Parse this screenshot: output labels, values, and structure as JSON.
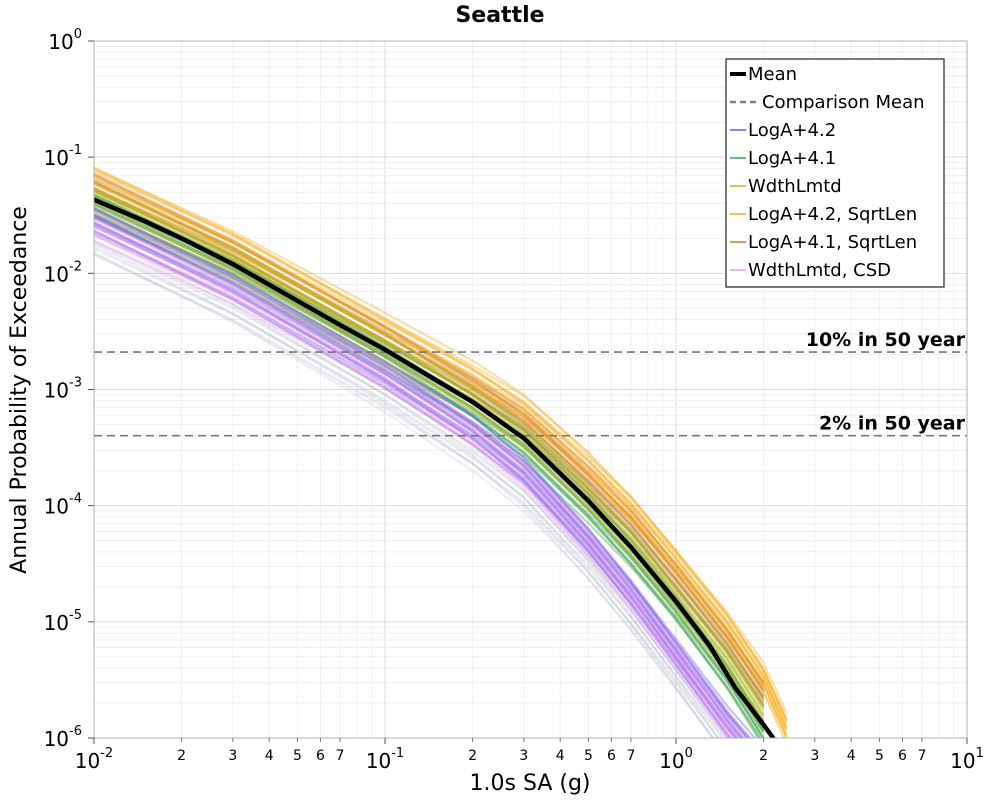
{
  "chart_data": {
    "type": "line",
    "title": "Seattle",
    "xlabel": "1.0s SA (g)",
    "ylabel": "Annual Probability of Exceedance",
    "x_scale": "log",
    "y_scale": "log",
    "xlim": [
      0.01,
      10
    ],
    "ylim": [
      1e-06,
      1
    ],
    "grid": true,
    "legend_placement": "top-right",
    "x_major_ticks": [
      {
        "base": "10",
        "exp": "-2",
        "value": 0.01
      },
      {
        "base": "10",
        "exp": "-1",
        "value": 0.1
      },
      {
        "base": "10",
        "exp": "0",
        "value": 1
      },
      {
        "base": "10",
        "exp": "1",
        "value": 10
      }
    ],
    "x_minor_labels": [
      "2",
      "3",
      "4",
      "5",
      "6",
      "7"
    ],
    "y_major_ticks": [
      {
        "base": "10",
        "exp": "0",
        "value": 1
      },
      {
        "base": "10",
        "exp": "-1",
        "value": 0.1
      },
      {
        "base": "10",
        "exp": "-2",
        "value": 0.01
      },
      {
        "base": "10",
        "exp": "-3",
        "value": 0.001
      },
      {
        "base": "10",
        "exp": "-4",
        "value": 0.0001
      },
      {
        "base": "10",
        "exp": "-5",
        "value": 1e-05
      },
      {
        "base": "10",
        "exp": "-6",
        "value": 1e-06
      }
    ],
    "series": [
      {
        "name": "Mean",
        "color": "#000000",
        "style": "solid-thick",
        "x": [
          0.01,
          0.015,
          0.02,
          0.03,
          0.05,
          0.07,
          0.1,
          0.15,
          0.2,
          0.3,
          0.5,
          0.7,
          1.0,
          1.3,
          1.6,
          2.0,
          2.3
        ],
        "y": [
          0.043,
          0.028,
          0.02,
          0.012,
          0.0058,
          0.0036,
          0.0022,
          0.0012,
          0.00078,
          0.00038,
          0.00011,
          4.4e-05,
          1.5e-05,
          6.3e-06,
          2.7e-06,
          1.3e-06,
          8e-07
        ]
      },
      {
        "name": "Comparison Mean",
        "color": "#808080",
        "style": "dashed",
        "x": [],
        "y": []
      },
      {
        "name": "LogA+4.2",
        "color": "#3a5ee8",
        "style": "band",
        "x": [
          0.01,
          0.03,
          0.1,
          0.2,
          0.3,
          0.5,
          0.7,
          1.0,
          1.5,
          2.0
        ],
        "y": [
          0.03,
          0.008,
          0.0014,
          0.00045,
          0.0002,
          5e-05,
          1.8e-05,
          5.5e-06,
          1.4e-06,
          6e-07
        ]
      },
      {
        "name": "LogA+4.1",
        "color": "#2e9a3c",
        "style": "band",
        "x": [
          0.01,
          0.03,
          0.1,
          0.2,
          0.3,
          0.5,
          0.7,
          1.0,
          1.5,
          2.0
        ],
        "y": [
          0.038,
          0.0105,
          0.0019,
          0.00068,
          0.00033,
          9.5e-05,
          3.8e-05,
          1.3e-05,
          3.4e-06,
          1.1e-06
        ]
      },
      {
        "name": "WdthLmtd",
        "color": "#a8b820",
        "style": "band",
        "x": [
          0.01,
          0.03,
          0.1,
          0.2,
          0.3,
          0.5,
          0.7,
          1.0,
          1.5,
          2.0
        ],
        "y": [
          0.045,
          0.0125,
          0.0023,
          0.00082,
          0.0004,
          0.00012,
          5e-05,
          1.7e-05,
          4.8e-06,
          1.6e-06
        ]
      },
      {
        "name": "LogA+4.2, SqrtLen",
        "color": "#f5a50a",
        "style": "band",
        "x": [
          0.01,
          0.03,
          0.1,
          0.2,
          0.3,
          0.5,
          0.7,
          1.0,
          1.5,
          2.0,
          2.4
        ],
        "y": [
          0.065,
          0.018,
          0.0034,
          0.0013,
          0.00068,
          0.00022,
          9.5e-05,
          3.3e-05,
          9.5e-06,
          3.3e-06,
          1.2e-06
        ]
      },
      {
        "name": "LogA+4.1, SqrtLen",
        "color": "#c06a2b",
        "style": "band",
        "x": [
          0.01,
          0.03,
          0.1,
          0.2,
          0.3,
          0.5,
          0.7,
          1.0,
          1.5,
          2.0
        ],
        "y": [
          0.055,
          0.015,
          0.0028,
          0.001,
          0.00052,
          0.00016,
          7e-05,
          2.4e-05,
          6.8e-06,
          2.4e-06
        ]
      },
      {
        "name": "WdthLmtd, CSD",
        "color": "#f08cf0",
        "style": "band",
        "x": [
          0.01,
          0.03,
          0.1,
          0.2,
          0.3,
          0.5,
          0.7,
          1.0,
          1.5,
          2.0
        ],
        "y": [
          0.026,
          0.0072,
          0.0013,
          0.00042,
          0.00019,
          4.8e-05,
          1.7e-05,
          5.2e-06,
          1.3e-06,
          5.5e-07
        ]
      }
    ],
    "annotations": [
      {
        "text": "10% in 50 year",
        "y": 0.0021
      },
      {
        "text": "2% in 50 year",
        "y": 0.0004
      }
    ]
  }
}
